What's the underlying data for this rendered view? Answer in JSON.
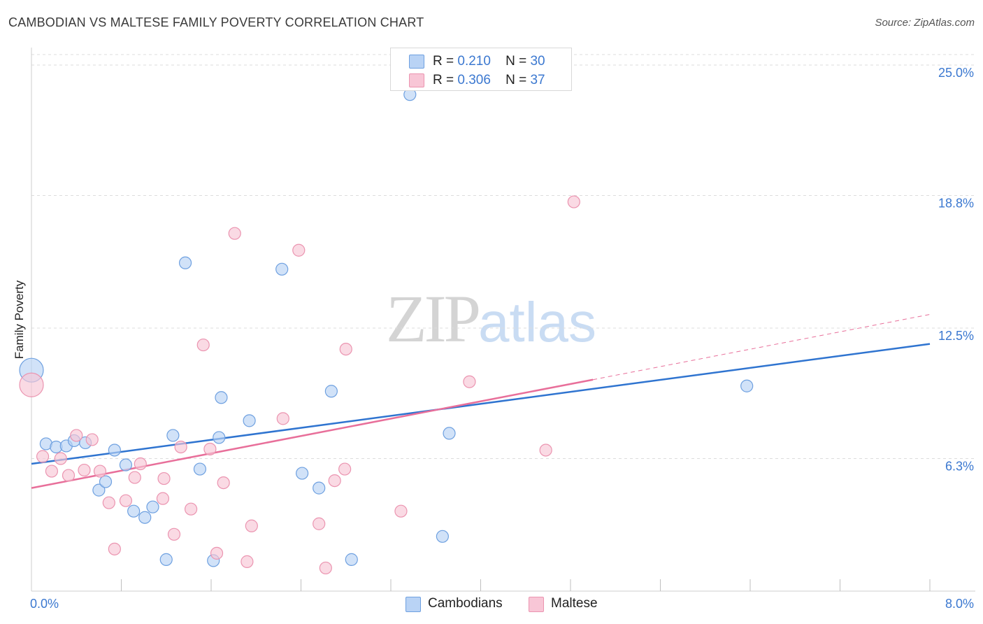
{
  "title": "CAMBODIAN VS MALTESE FAMILY POVERTY CORRELATION CHART",
  "source": "Source: ZipAtlas.com",
  "watermark": {
    "zip": "ZIP",
    "atlas": "atlas"
  },
  "colors": {
    "blue_fill": "#b9d3f5",
    "blue_stroke": "#6ea0e0",
    "blue_line": "#2f74d0",
    "pink_fill": "#f8c6d6",
    "pink_stroke": "#eb94b0",
    "pink_line": "#e86f9a",
    "axis_label": "#3b78d0",
    "grid": "#dddddd"
  },
  "legend": [
    {
      "r_label": "R =",
      "r_value": "0.210",
      "n_label": "N =",
      "n_value": "30"
    },
    {
      "r_label": "R =",
      "r_value": "0.306",
      "n_label": "N =",
      "n_value": "37"
    }
  ],
  "bottom_legend": [
    "Cambodians",
    "Maltese"
  ],
  "chart_data": {
    "type": "scatter",
    "title": "CAMBODIAN VS MALTESE FAMILY POVERTY CORRELATION CHART",
    "xlabel": "",
    "ylabel": "Family Poverty",
    "xlim": [
      0,
      8
    ],
    "ylim": [
      0,
      25.5
    ],
    "x_tick_labels": [
      "0.0%",
      "8.0%"
    ],
    "y_ticks": [
      6.3,
      12.5,
      18.8,
      25.0
    ],
    "y_tick_labels": [
      "6.3%",
      "12.5%",
      "18.8%",
      "25.0%"
    ],
    "grid": "horizontal dashed",
    "legend_position": "top-center",
    "series": [
      {
        "name": "Cambodians",
        "points": [
          [
            0.0,
            10.5
          ],
          [
            0.13,
            7.0
          ],
          [
            0.22,
            6.85
          ],
          [
            0.31,
            6.9
          ],
          [
            0.38,
            7.15
          ],
          [
            0.48,
            7.05
          ],
          [
            0.6,
            4.8
          ],
          [
            0.66,
            5.2
          ],
          [
            0.74,
            6.7
          ],
          [
            0.84,
            6.0
          ],
          [
            0.91,
            3.8
          ],
          [
            1.01,
            3.5
          ],
          [
            1.08,
            4.0
          ],
          [
            1.2,
            1.5
          ],
          [
            1.26,
            7.4
          ],
          [
            1.37,
            15.6
          ],
          [
            1.5,
            5.8
          ],
          [
            1.62,
            1.45
          ],
          [
            1.67,
            7.3
          ],
          [
            1.69,
            9.2
          ],
          [
            1.94,
            8.1
          ],
          [
            2.23,
            15.3
          ],
          [
            2.41,
            5.6
          ],
          [
            2.56,
            4.9
          ],
          [
            2.67,
            9.5
          ],
          [
            2.85,
            1.5
          ],
          [
            3.37,
            23.6
          ],
          [
            3.66,
            2.6
          ],
          [
            3.72,
            7.5
          ],
          [
            6.37,
            9.75
          ]
        ],
        "trend": {
          "x": [
            0.0,
            8.0
          ],
          "y": [
            6.05,
            11.75
          ]
        }
      },
      {
        "name": "Maltese",
        "points": [
          [
            0.0,
            9.8
          ],
          [
            0.1,
            6.4
          ],
          [
            0.18,
            5.7
          ],
          [
            0.26,
            6.3
          ],
          [
            0.33,
            5.5
          ],
          [
            0.4,
            7.4
          ],
          [
            0.47,
            5.75
          ],
          [
            0.54,
            7.2
          ],
          [
            0.61,
            5.7
          ],
          [
            0.69,
            4.2
          ],
          [
            0.74,
            2.0
          ],
          [
            0.84,
            4.3
          ],
          [
            0.92,
            5.4
          ],
          [
            0.97,
            6.05
          ],
          [
            1.17,
            4.4
          ],
          [
            1.18,
            5.35
          ],
          [
            1.27,
            2.7
          ],
          [
            1.33,
            6.85
          ],
          [
            1.42,
            3.9
          ],
          [
            1.53,
            11.7
          ],
          [
            1.59,
            6.75
          ],
          [
            1.65,
            1.8
          ],
          [
            1.71,
            5.15
          ],
          [
            1.81,
            17.0
          ],
          [
            1.92,
            1.4
          ],
          [
            1.96,
            3.1
          ],
          [
            2.24,
            8.2
          ],
          [
            2.38,
            16.2
          ],
          [
            2.56,
            3.2
          ],
          [
            2.62,
            1.1
          ],
          [
            2.7,
            5.25
          ],
          [
            2.79,
            5.8
          ],
          [
            2.8,
            11.5
          ],
          [
            3.29,
            3.8
          ],
          [
            3.9,
            9.95
          ],
          [
            4.58,
            6.7
          ],
          [
            4.83,
            18.5
          ]
        ],
        "trend": {
          "x": [
            0.0,
            5.0
          ],
          "y": [
            4.9,
            10.05
          ]
        },
        "trend_dashed": {
          "x": [
            5.0,
            8.0
          ],
          "y": [
            10.05,
            13.15
          ]
        }
      }
    ]
  }
}
